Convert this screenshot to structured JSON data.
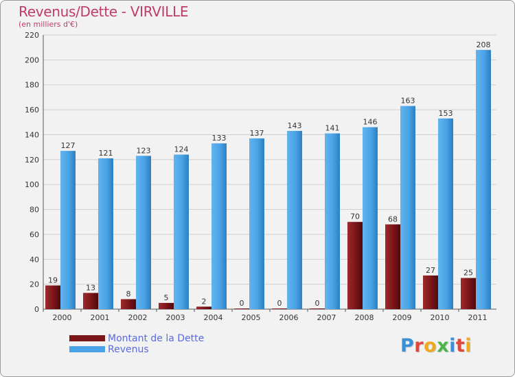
{
  "chart_data": {
    "type": "bar",
    "title": "Revenus/Dette - VIRVILLE",
    "subtitle": "(en milliers d'€)",
    "categories": [
      "2000",
      "2001",
      "2002",
      "2003",
      "2004",
      "2005",
      "2006",
      "2007",
      "2008",
      "2009",
      "2010",
      "2011"
    ],
    "series": [
      {
        "name": "Montant de la Dette",
        "color": "#7a1518",
        "values": [
          19,
          13,
          8,
          5,
          2,
          0,
          0,
          0,
          70,
          68,
          27,
          25
        ]
      },
      {
        "name": "Revenus",
        "color": "#4aa3e6",
        "values": [
          127,
          121,
          123,
          124,
          133,
          137,
          143,
          141,
          146,
          163,
          153,
          208
        ]
      }
    ],
    "ylim": [
      0,
      220
    ],
    "yticks": [
      0,
      20,
      40,
      60,
      80,
      100,
      120,
      140,
      160,
      180,
      200,
      220
    ],
    "xlabel": "",
    "ylabel": "",
    "grid": true,
    "legend_position": "bottom-left"
  },
  "logo": {
    "letters": [
      "P",
      "r",
      "o",
      "x",
      "i",
      "t",
      "i"
    ],
    "colors": [
      "#3b8fd6",
      "#e0473a",
      "#f2a81d",
      "#4bb548",
      "#3b8fd6",
      "#e0473a",
      "#f2a81d"
    ]
  }
}
